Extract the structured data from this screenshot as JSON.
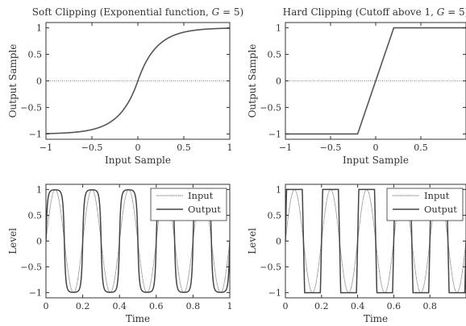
{
  "chart_data": [
    {
      "id": "soft-transfer",
      "type": "line",
      "title_prefix": "Soft Clipping (Exponential function, ",
      "title_var": "G",
      "title_suffix": " = 5)",
      "xlabel": "Input Sample",
      "ylabel": "Output Sample",
      "xlim": [
        -1,
        1
      ],
      "ylim": [
        -1.1,
        1.1
      ],
      "xticks": [
        -1,
        -0.5,
        0,
        0.5,
        1
      ],
      "xtick_labels": [
        "−1",
        "−0.5",
        "0",
        "0.5",
        "1"
      ],
      "yticks": [
        -1,
        -0.5,
        0,
        0.5,
        1
      ],
      "ytick_labels": [
        "−1",
        "−0.5",
        "0",
        "0.5",
        "1"
      ],
      "gain": 5,
      "series": [
        {
          "function": "sign(x)*(1-exp(-G*|x|))",
          "color": "#555555"
        }
      ],
      "reference_line": {
        "y": 0,
        "style": "dotted"
      }
    },
    {
      "id": "hard-transfer",
      "type": "line",
      "title_prefix": "Hard Clipping (Cutoff above 1, ",
      "title_var": "G",
      "title_suffix": " = 5)",
      "xlabel": "Input Sample",
      "ylabel": "Output Sample",
      "xlim": [
        -1,
        1
      ],
      "ylim": [
        -1.1,
        1.1
      ],
      "xticks": [
        -1,
        -0.5,
        0,
        0.5
      ],
      "xtick_labels": [
        "−1",
        "−0.5",
        "0",
        "0.5"
      ],
      "yticks": [
        -1,
        -0.5,
        0,
        0.5,
        1
      ],
      "ytick_labels": [
        "−1",
        "−0.5",
        "0",
        "0.5",
        "1"
      ],
      "gain": 5,
      "series": [
        {
          "function": "clip(G*x,-1,1)",
          "color": "#555555"
        }
      ],
      "reference_line": {
        "y": 0,
        "style": "dotted"
      }
    },
    {
      "id": "soft-time",
      "type": "line",
      "title": "",
      "xlabel": "Time",
      "ylabel": "Level",
      "xlim": [
        0,
        1
      ],
      "ylim": [
        -1.1,
        1.1
      ],
      "xticks": [
        0,
        0.2,
        0.4,
        0.6,
        0.8,
        1
      ],
      "xtick_labels": [
        "0",
        "0.2",
        "0.4",
        "0.6",
        "0.8",
        "1"
      ],
      "yticks": [
        -1,
        -0.5,
        0,
        0.5,
        1
      ],
      "ytick_labels": [
        "−1",
        "−0.5",
        "0",
        "0.5",
        "1"
      ],
      "frequency": 5,
      "gain": 5,
      "legend": {
        "position": "top-right",
        "entries": [
          "Input",
          "Output"
        ]
      },
      "series": [
        {
          "name": "Input",
          "function": "sin(2*pi*f*t)",
          "style": "thin",
          "color": "#777777"
        },
        {
          "name": "Output",
          "function": "soft_clip(G*input)",
          "style": "solid",
          "color": "#444444"
        }
      ]
    },
    {
      "id": "hard-time",
      "type": "line",
      "title": "",
      "xlabel": "Time",
      "ylabel": "Level",
      "xlim": [
        0,
        1
      ],
      "ylim": [
        -1.1,
        1.1
      ],
      "xticks": [
        0,
        0.2,
        0.4,
        0.6,
        0.8
      ],
      "xtick_labels": [
        "0",
        "0.2",
        "0.4",
        "0.6",
        "0.8"
      ],
      "yticks": [
        -1,
        -0.5,
        0,
        0.5,
        1
      ],
      "ytick_labels": [
        "−1",
        "−0.5",
        "0",
        "0.5",
        "1"
      ],
      "frequency": 5,
      "gain": 5,
      "legend": {
        "position": "top-right",
        "entries": [
          "Input",
          "Output"
        ]
      },
      "series": [
        {
          "name": "Input",
          "function": "sin(2*pi*f*t)",
          "style": "thin",
          "color": "#777777"
        },
        {
          "name": "Output",
          "function": "hard_clip(G*input)",
          "style": "solid",
          "color": "#444444"
        }
      ]
    }
  ]
}
